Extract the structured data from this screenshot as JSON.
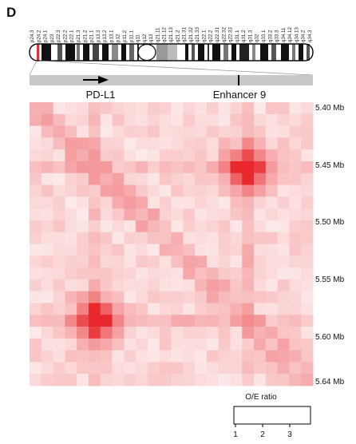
{
  "panel_letter": "D",
  "chromosome": {
    "band_labels": [
      "p24.3",
      "p24.2",
      "p24.1",
      "p23",
      "p22.3",
      "p22.2",
      "p22.1",
      "p21.3",
      "p21.2",
      "p21.1",
      "p13.3",
      "p13.2",
      "p13.1",
      "p12",
      "p11.2",
      "p11.1",
      "q11",
      "q12",
      "q13",
      "q21.11",
      "q21.12",
      "q21.13",
      "q21.2",
      "q21.31",
      "q21.32",
      "q21.33",
      "q22.1",
      "q22.2",
      "q22.31",
      "q22.32",
      "q22.33",
      "q31.1",
      "q31.2",
      "q31.3",
      "q32",
      "q33.1",
      "q33.2",
      "q33.3",
      "q34.11",
      "q34.12",
      "q34.13",
      "q34.2",
      "q34.3"
    ]
  },
  "genes": {
    "left_label": "PD-L1",
    "right_label": "Enhancer 9"
  },
  "y_axis_labels": [
    "5.40 Mb",
    "5.45 Mb",
    "5.50 Mb",
    "5.55 Mb",
    "5.60 Mb",
    "5.64 Mb"
  ],
  "legend": {
    "title": "O/E ratio",
    "ticks": [
      "1",
      "2",
      "3"
    ],
    "color_low": "#ffffff",
    "color_high": "#ee2222"
  },
  "heatmap": {
    "grid_size": 24,
    "hotspots": [
      {
        "row": 5,
        "col": 18,
        "value": 3.8
      },
      {
        "row": 18,
        "col": 5,
        "value": 3.8
      }
    ]
  }
}
